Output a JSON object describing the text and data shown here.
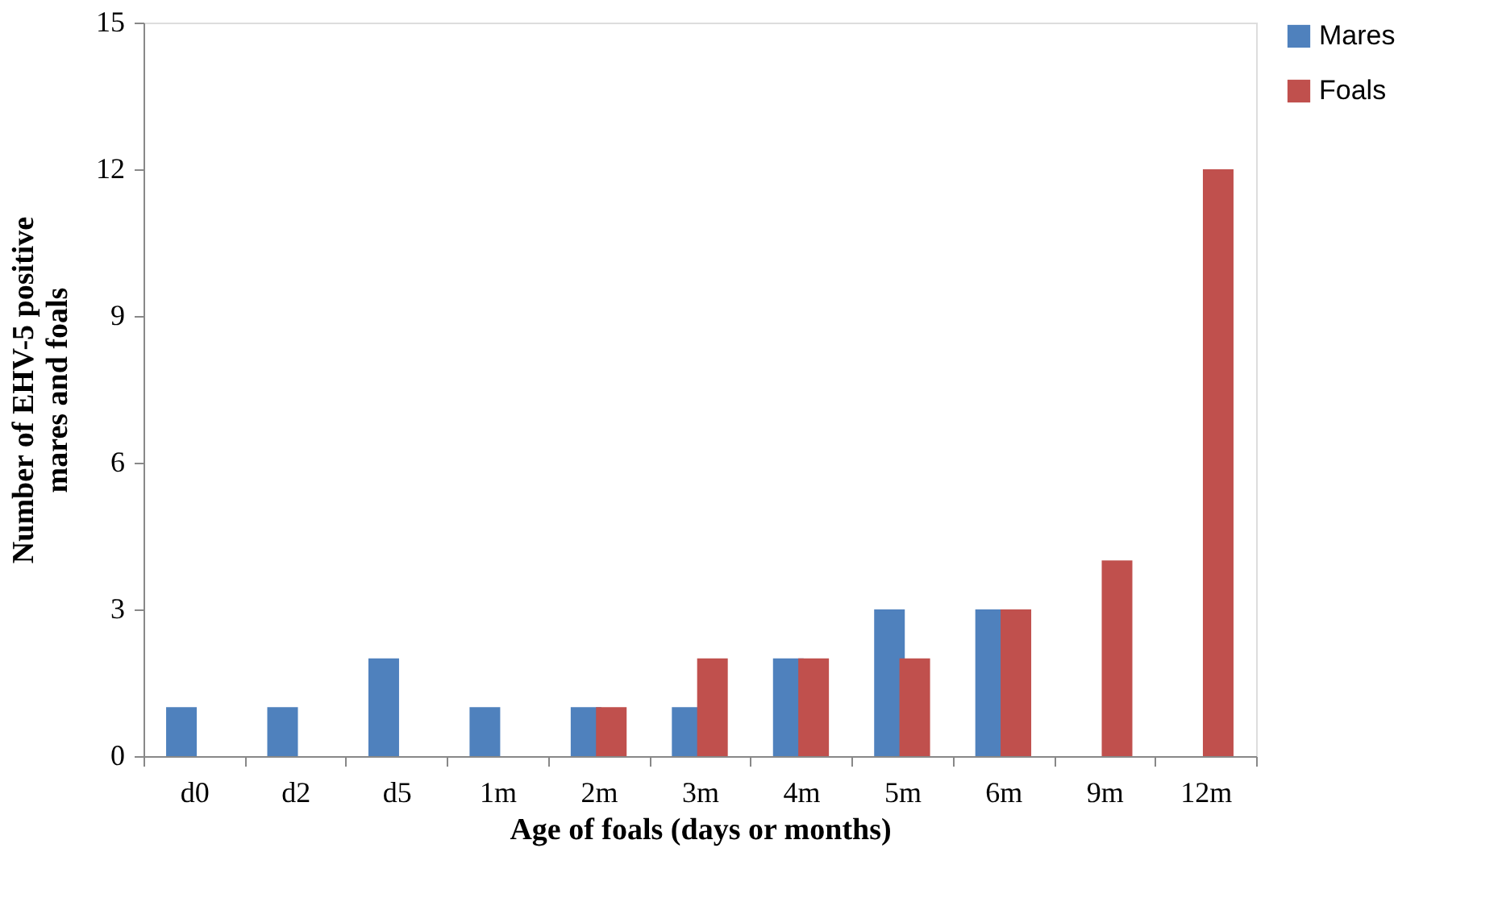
{
  "chart_data": {
    "type": "bar",
    "xlabel": "Age of foals (days or months)",
    "ylabel": "Number of  EHV-5 positive\nmares and foals",
    "categories": [
      "d0",
      "d2",
      "d5",
      "1m",
      "2m",
      "3m",
      "4m",
      "5m",
      "6m",
      "9m",
      "12m"
    ],
    "series": [
      {
        "name": "Mares",
        "color": "#4f81bd",
        "values": [
          1,
          1,
          2,
          1,
          1,
          1,
          2,
          3,
          3,
          null,
          null
        ]
      },
      {
        "name": "Foals",
        "color": "#c0504d",
        "values": [
          null,
          null,
          null,
          null,
          1,
          2,
          2,
          2,
          3,
          4,
          12
        ]
      }
    ],
    "ylim": [
      0,
      15
    ],
    "yticks": [
      0,
      3,
      6,
      9,
      12,
      15
    ],
    "grid": false,
    "legend": "right"
  }
}
